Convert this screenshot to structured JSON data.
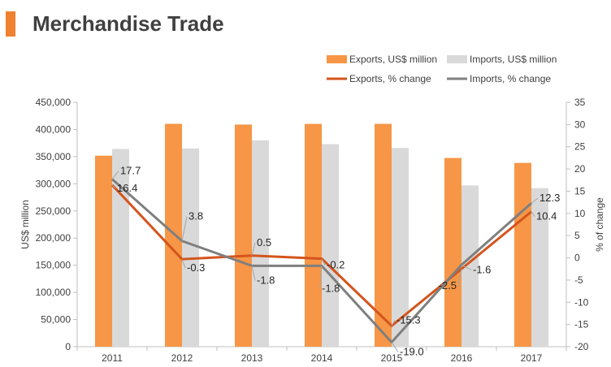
{
  "header": {
    "title": "Merchandise Trade",
    "accent_color": "#f0812e"
  },
  "chart_data": {
    "type": "bar",
    "categories": [
      "2011",
      "2012",
      "2013",
      "2014",
      "2015",
      "2016",
      "2017"
    ],
    "bar_series": [
      {
        "name": "Exports, US$ million",
        "color": "#f79646",
        "values": [
          351700,
          410400,
          409000,
          410300,
          410300,
          347500,
          338400
        ]
      },
      {
        "name": "Imports, US$ million",
        "color": "#d9d9d9",
        "values": [
          364000,
          365000,
          380000,
          373000,
          366000,
          297000,
          292000
        ]
      }
    ],
    "line_series": [
      {
        "name": "Exports, % change",
        "color": "#d4541c",
        "values": [
          16.4,
          -0.3,
          0.5,
          -0.2,
          -15.3,
          -2.5,
          10.4
        ],
        "labels": [
          "16.4",
          "-0.3",
          "0.5",
          "-0.2",
          "-15.3",
          "-2.5",
          "10.4"
        ]
      },
      {
        "name": "Imports, % change",
        "color": "#7f7f7f",
        "values": [
          17.7,
          3.8,
          -1.8,
          -1.8,
          -19.0,
          -1.6,
          12.3
        ],
        "labels": [
          "17.7",
          "3.8",
          "-1.8",
          "-1.8",
          "-19.0",
          "-1.6",
          "12.3"
        ]
      }
    ],
    "y_left": {
      "label": "US$ million",
      "min": 0,
      "max": 450000,
      "ticks": [
        "0",
        "50,000",
        "100,000",
        "150,000",
        "200,000",
        "250,000",
        "300,000",
        "350,000",
        "400,000",
        "450,000"
      ]
    },
    "y_right": {
      "label": "% of change",
      "min": -20,
      "max": 35,
      "ticks": [
        "-20",
        "-15",
        "-10",
        "-5",
        "0",
        "5",
        "10",
        "15",
        "20",
        "25",
        "30",
        "35"
      ]
    },
    "legend_position": "top-right",
    "grid": false
  }
}
